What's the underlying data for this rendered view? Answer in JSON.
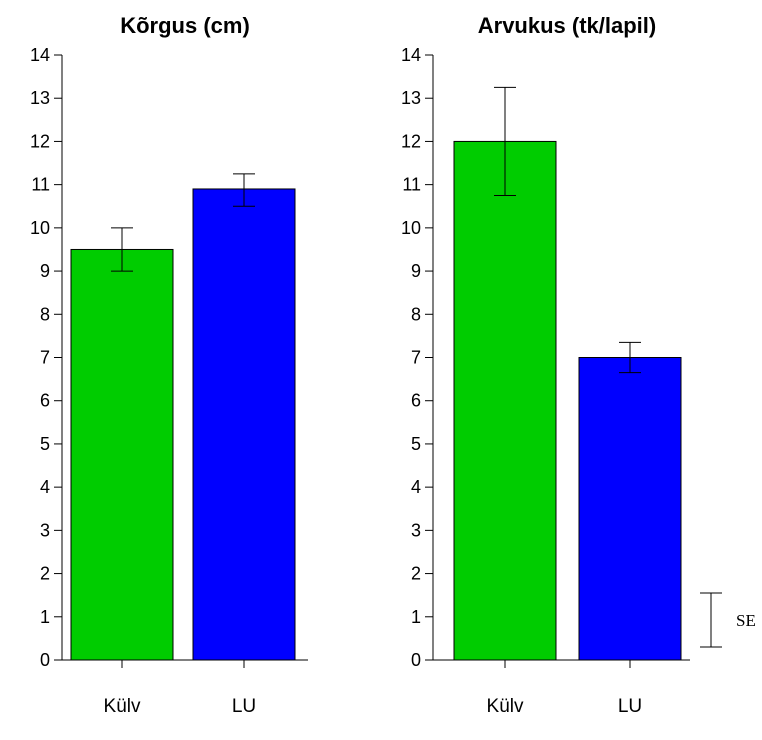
{
  "chart_data": [
    {
      "type": "bar",
      "title": "Kõrgus (cm)",
      "categories": [
        "Külv",
        "LU"
      ],
      "values": [
        9.5,
        10.9
      ],
      "error_low": [
        9.0,
        10.5
      ],
      "error_high": [
        10.0,
        11.25
      ],
      "colors": [
        "#00cc00",
        "#0000ff"
      ],
      "ylim": [
        0,
        14
      ],
      "yticks": [
        "0",
        "1",
        "2",
        "3",
        "4",
        "5",
        "6",
        "7",
        "8",
        "9",
        "10",
        "11",
        "12",
        "13",
        "14"
      ]
    },
    {
      "type": "bar",
      "title": "Arvukus (tk/lapil)",
      "categories": [
        "Külv",
        "LU"
      ],
      "values": [
        12.0,
        7.0
      ],
      "error_low": [
        10.75,
        6.65
      ],
      "error_high": [
        13.25,
        7.35
      ],
      "colors": [
        "#00cc00",
        "#0000ff"
      ],
      "ylim": [
        0,
        14
      ],
      "yticks": [
        "0",
        "1",
        "2",
        "3",
        "4",
        "5",
        "6",
        "7",
        "8",
        "9",
        "10",
        "11",
        "12",
        "13",
        "14"
      ]
    }
  ],
  "legend": {
    "se_label": "SE",
    "se_low": 0.3,
    "se_high": 1.55
  }
}
